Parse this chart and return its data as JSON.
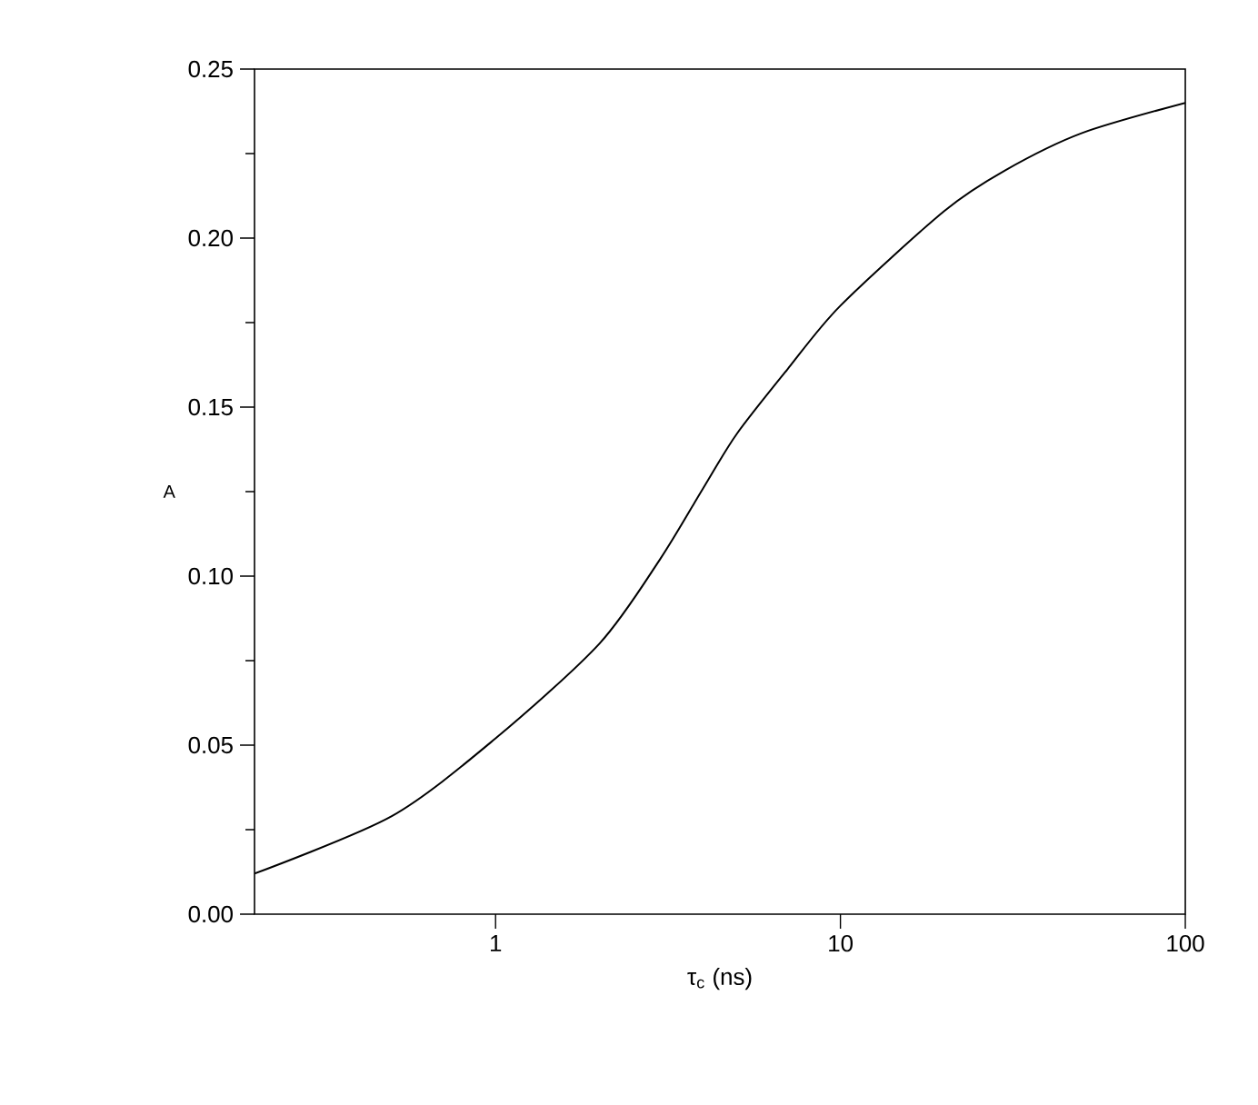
{
  "chart_data": {
    "type": "line",
    "xlabel": "τ$_{c}$ (ns)",
    "ylabel": "A",
    "log": "x",
    "xlim": [
      0.2,
      100
    ],
    "xticks": [
      1,
      10,
      100
    ],
    "ylim": [
      0,
      0.25
    ],
    "yticks": [
      {
        "value": 0,
        "label": "0.00"
      },
      {
        "value": 0.05,
        "label": "0.05"
      },
      {
        "value": 0.1,
        "label": "0.10"
      },
      {
        "value": 0.15,
        "label": "0.15"
      },
      {
        "value": 0.2,
        "label": "0.20"
      },
      {
        "value": 0.25,
        "label": "0.25"
      }
    ],
    "x": [
      0.2,
      0.5,
      1,
      2,
      3,
      4,
      5,
      7,
      10,
      20,
      30,
      50,
      100
    ],
    "series": [
      {
        "color": "#000000",
        "values": [
          0.012,
          0.029,
          0.052,
          0.08,
          0.105,
          0.126,
          0.142,
          0.161,
          0.18,
          0.208,
          0.22,
          0.231,
          0.24
        ]
      }
    ],
    "marker": "none",
    "line_style": "solid"
  }
}
